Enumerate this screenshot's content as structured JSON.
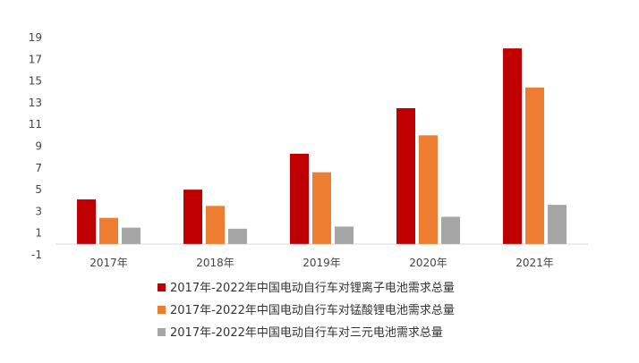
{
  "chart_data": {
    "type": "bar",
    "categories": [
      "2017年",
      "2018年",
      "2019年",
      "2020年",
      "2021年"
    ],
    "series": [
      {
        "name": "2017年-2022年中国电动自行车对锂离子电池需求总量",
        "color": "#c00000",
        "values": [
          4.1,
          5.0,
          8.3,
          12.5,
          18.0
        ]
      },
      {
        "name": "2017年-2022年中国电动自行车对锰酸锂电池需求总量",
        "color": "#ed7d31",
        "values": [
          2.4,
          3.5,
          6.6,
          10.0,
          14.4
        ]
      },
      {
        "name": "2017年-2022年中国电动自行车对三元电池需求总量",
        "color": "#a5a5a5",
        "values": [
          1.5,
          1.4,
          1.6,
          2.5,
          3.6
        ]
      }
    ],
    "yticks": [
      "-1",
      "1",
      "3",
      "5",
      "7",
      "9",
      "11",
      "13",
      "15",
      "17",
      "19"
    ],
    "ylim": [
      -1,
      19
    ],
    "grid": false,
    "legend_position": "bottom"
  }
}
